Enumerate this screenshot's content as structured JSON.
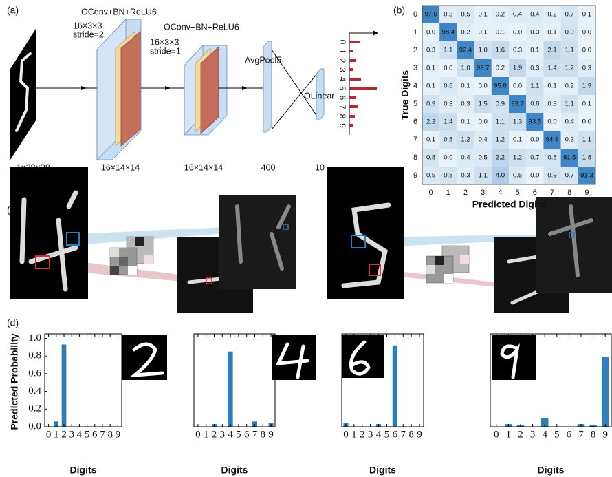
{
  "panel_labels": [
    "(a)",
    "(b)",
    "(c)",
    "(d)"
  ],
  "network": {
    "blocks": [
      {
        "name": "OConv+BN+ReLU6",
        "kernel": "16×3×3",
        "stride": "stride=2"
      },
      {
        "name": "OConv+BN+ReLU6",
        "kernel": "16×3×3",
        "stride": "stride=1"
      }
    ],
    "pool": "AvgPool5",
    "linear": "OLinear",
    "dims": [
      "1×28×28",
      "16×14×14",
      "16×14×14",
      "400",
      "10"
    ],
    "output_labels": [
      "0",
      "1",
      "2",
      "3",
      "4",
      "5",
      "6",
      "7",
      "8",
      "9"
    ]
  },
  "chart_data": [
    {
      "type": "heatmap",
      "x_label": "Predicted Digits",
      "y_label": "True Digits",
      "categories": [
        "0",
        "1",
        "2",
        "3",
        "4",
        "5",
        "6",
        "7",
        "8",
        "9"
      ],
      "values": [
        [
          97.0,
          0.3,
          0.5,
          0.1,
          0.2,
          0.4,
          0.4,
          0.2,
          0.7,
          0.1
        ],
        [
          0.0,
          98.4,
          0.2,
          0.1,
          0.1,
          0.0,
          0.3,
          0.1,
          0.9,
          0.0
        ],
        [
          0.3,
          1.1,
          92.4,
          1.0,
          1.6,
          0.3,
          0.1,
          2.1,
          1.1,
          0.0
        ],
        [
          0.1,
          0.0,
          1.0,
          93.7,
          0.2,
          1.9,
          0.3,
          1.4,
          1.2,
          0.3
        ],
        [
          0.1,
          0.6,
          0.1,
          0.0,
          95.8,
          0.0,
          1.1,
          0.1,
          0.2,
          1.9
        ],
        [
          0.9,
          0.3,
          0.3,
          1.5,
          0.9,
          93.7,
          0.8,
          0.3,
          1.1,
          0.1
        ],
        [
          2.2,
          1.4,
          0.1,
          0.0,
          1.1,
          1.3,
          93.5,
          0.0,
          0.4,
          0.0
        ],
        [
          0.1,
          0.8,
          1.2,
          0.4,
          1.2,
          0.1,
          0.0,
          94.9,
          0.3,
          1.1
        ],
        [
          0.8,
          0.0,
          0.4,
          0.5,
          2.2,
          1.2,
          0.7,
          0.8,
          91.5,
          1.8
        ],
        [
          0.5,
          0.8,
          0.3,
          1.1,
          4.0,
          0.5,
          0.0,
          0.9,
          0.7,
          91.3
        ]
      ],
      "value_labels": [
        [
          "97.0",
          "0.3",
          "0.5",
          "0.1",
          "0.2",
          "0.4",
          "0.4",
          "0.2",
          "0.7",
          "0.1"
        ],
        [
          "0.0",
          "98.4",
          "0.2",
          "0.1",
          "0.1",
          "0.0",
          "0.3",
          "0.1",
          "0.9",
          "0.0"
        ],
        [
          "0.3",
          "1.1",
          "92.4",
          "1.0",
          "1.6",
          "0.3",
          "0.1",
          "2.1",
          "1.1",
          "0.0"
        ],
        [
          "0.1",
          "0.0",
          "1.0",
          "93.7",
          "0.2",
          "1.9",
          "0.3",
          "1.4",
          "1.2",
          "0.3"
        ],
        [
          "0.1",
          "0.6",
          "0.1",
          "0.0",
          "95.8",
          "0.0",
          "1.1",
          "0.1",
          "0.2",
          "1.9"
        ],
        [
          "0.9",
          "0.3",
          "0.3",
          "1.5",
          "0.9",
          "93.7",
          "0.8",
          "0.3",
          "1.1",
          "0.1"
        ],
        [
          "2.2",
          "1.4",
          "0.1",
          "0.0",
          "1.1",
          "1.3",
          "93.5",
          "0.0",
          "0.4",
          "0.0"
        ],
        [
          "0.1",
          "0.8",
          "1.2",
          "0.4",
          "1.2",
          "0.1",
          "0.0",
          "94.9",
          "0.3",
          "1.1"
        ],
        [
          "0.8",
          "0.0",
          "0.4",
          "0.5",
          "2.2",
          "1.2",
          "0.7",
          "0.8",
          "91.5",
          "1.8"
        ],
        [
          "0.5",
          "0.8",
          "0.3",
          "1.1",
          "4.0",
          "0.5",
          "0.0",
          "0.9",
          "0.7",
          "91.3"
        ]
      ]
    },
    {
      "type": "bar",
      "x_label": "Digits",
      "y_label": "Predicted Probability",
      "categories": [
        "0",
        "1",
        "2",
        "3",
        "4",
        "5",
        "6",
        "7",
        "8",
        "9"
      ],
      "values": [
        0,
        0.06,
        0.93,
        0,
        0,
        0,
        0,
        0,
        0,
        0
      ],
      "color": "#2e7ebc",
      "ylim": [
        0,
        1.05
      ],
      "yticks": [
        {
          "value": 0,
          "label": "0.0"
        },
        0.2,
        0.4,
        0.6,
        0.8,
        {
          "value": 1,
          "label": "1.0"
        }
      ]
    },
    {
      "type": "bar",
      "x_label": "Digits",
      "categories": [
        "0",
        "1",
        "2",
        "3",
        "4",
        "5",
        "6",
        "7",
        "8",
        "9"
      ],
      "values": [
        0,
        0,
        0.03,
        0,
        0.85,
        0,
        0,
        0.06,
        0,
        0.04
      ],
      "color": "#2e7ebc",
      "ylim": [
        0,
        1.05
      ]
    },
    {
      "type": "bar",
      "x_label": "Digits",
      "categories": [
        "0",
        "1",
        "2",
        "3",
        "4",
        "5",
        "6",
        "7",
        "8",
        "9"
      ],
      "values": [
        0.04,
        0,
        0,
        0,
        0.03,
        0,
        0.92,
        0,
        0,
        0
      ],
      "color": "#2e7ebc",
      "ylim": [
        0,
        1.05
      ]
    },
    {
      "type": "bar",
      "x_label": "Digits",
      "categories": [
        "0",
        "1",
        "2",
        "3",
        "4",
        "5",
        "6",
        "7",
        "8",
        "9"
      ],
      "values": [
        0,
        0.03,
        0.02,
        0,
        0.1,
        0,
        0,
        0.03,
        0.02,
        0.79
      ],
      "color": "#2e7ebc",
      "ylim": [
        0,
        1.05
      ]
    }
  ]
}
